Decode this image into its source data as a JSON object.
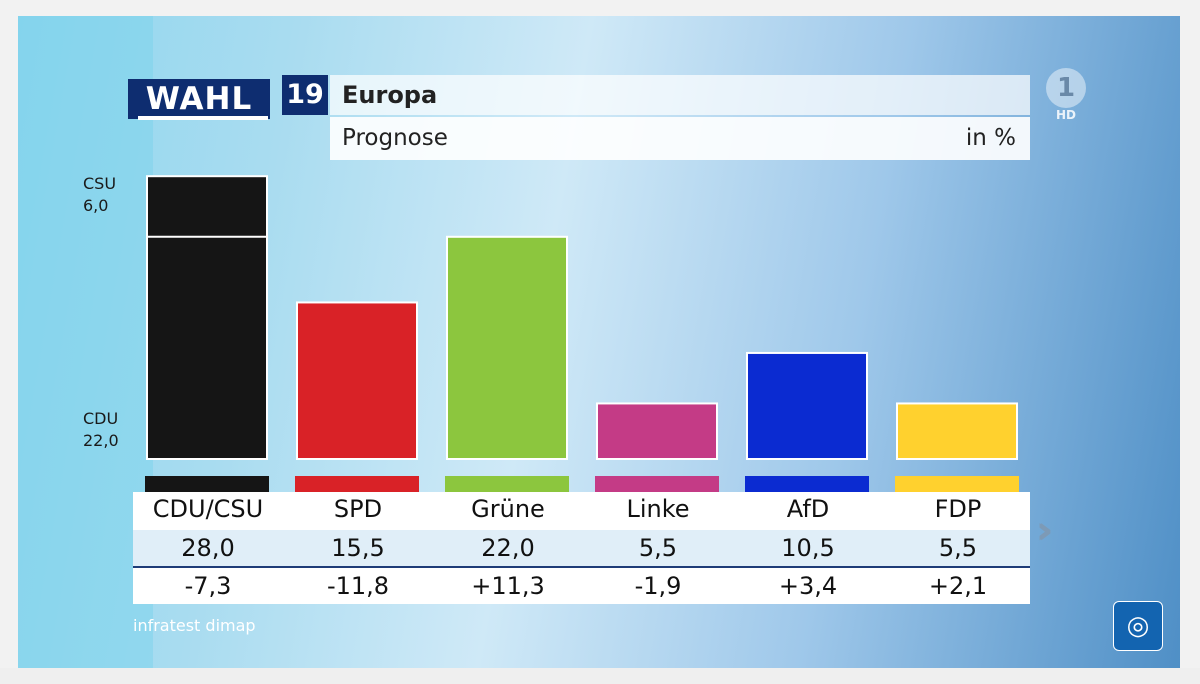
{
  "header": {
    "brand": "WAHL",
    "year": "19",
    "title": "Europa",
    "subtitle": "Prognose",
    "unit": "in %"
  },
  "channel": {
    "logo_text": "1",
    "quality": "HD",
    "corner_icon": "tagesschau-globe-icon"
  },
  "source": "infratest dimap",
  "colors": {
    "CDU/CSU": "#151515",
    "SPD": "#d92227",
    "Grüne": "#8cc63e",
    "Linke": "#c43b86",
    "AfD": "#0b2bd1",
    "FDP": "#ffd12e"
  },
  "chart_data": {
    "type": "bar",
    "categories": [
      "CDU/CSU",
      "SPD",
      "Grüne",
      "Linke",
      "AfD",
      "FDP"
    ],
    "values": [
      28.0,
      15.5,
      22.0,
      5.5,
      10.5,
      5.5
    ],
    "value_labels": [
      "28,0",
      "15,5",
      "22,0",
      "5,5",
      "10,5",
      "5,5"
    ],
    "changes": [
      "-7,3",
      "-11,8",
      "+11,3",
      "-1,9",
      "+3,4",
      "+2,1"
    ],
    "stacked_breakdown": {
      "category": "CDU/CSU",
      "parts": [
        {
          "name": "CDU",
          "value": 22.0,
          "label": "22,0"
        },
        {
          "name": "CSU",
          "value": 6.0,
          "label": "6,0"
        }
      ]
    },
    "title": "Europa",
    "subtitle": "Prognose",
    "ylabel": "in %",
    "grid": false
  }
}
